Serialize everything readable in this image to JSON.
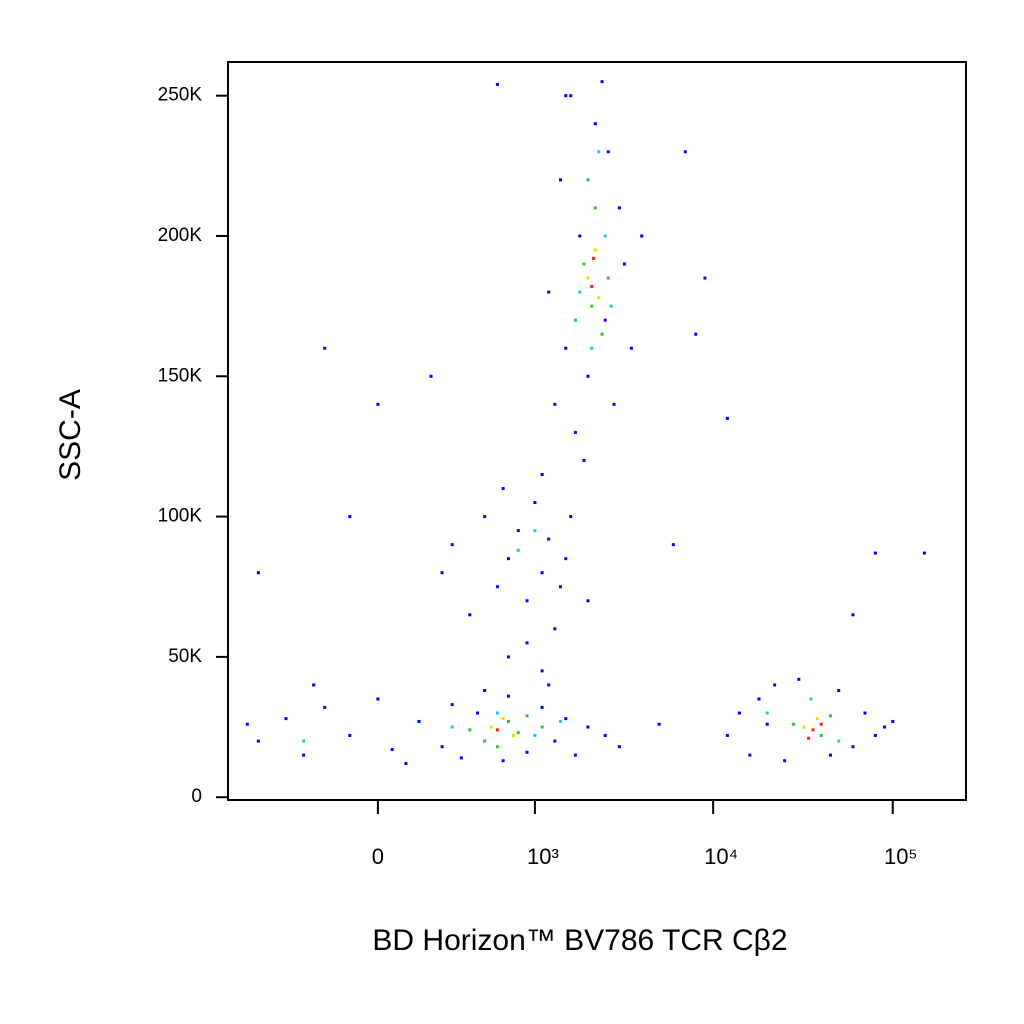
{
  "chart_data": {
    "type": "scatter",
    "x_label": "BD Horizon™ BV786 TCR Cβ2",
    "y_label": "SSC-A",
    "xscale": "asinh",
    "xlim": [
      -909,
      255700
    ],
    "ylim": [
      -1000,
      262000
    ],
    "xticks": [
      0,
      {
        "value": 1000,
        "label": "10³"
      },
      {
        "value": 10000,
        "label": "10⁴"
      },
      {
        "value": 100000,
        "label": "10⁵"
      }
    ],
    "yticks": [
      0,
      {
        "value": 50000,
        "label": "50K"
      },
      {
        "value": 100000,
        "label": "100K"
      },
      {
        "value": 150000,
        "label": "150K"
      },
      {
        "value": 200000,
        "label": "200K"
      },
      {
        "value": 250000,
        "label": "250K"
      }
    ],
    "series": [
      {
        "color": "#0000ff",
        "x": [
          -600,
          -400,
          -300,
          -200,
          -100,
          0,
          100,
          150,
          250,
          300,
          350,
          450,
          500,
          650,
          700,
          900,
          1100,
          1300,
          1500,
          1700,
          2000,
          -700,
          -250,
          50,
          1200,
          2500,
          3000,
          5000,
          12000,
          14000,
          16000,
          18000,
          20000,
          22000,
          25000,
          50000,
          60000,
          70000,
          80000,
          90000,
          45000,
          30000,
          100000,
          300,
          500,
          600,
          700,
          800,
          900,
          1000,
          1100,
          1200,
          1400,
          1600,
          400,
          650,
          1300,
          250,
          900,
          1100,
          700,
          1500,
          2000,
          1300,
          1500,
          1700,
          1800,
          2000,
          2200,
          2500,
          2800,
          3000,
          3200,
          1400,
          1600,
          2400,
          3500,
          1200,
          2600,
          1900,
          1100,
          4000,
          1500,
          -200,
          -100,
          0,
          200,
          8000,
          9000,
          12000,
          60000,
          80000,
          150000,
          6000,
          600,
          7000,
          -600
        ],
        "y": [
          20000,
          28000,
          15000,
          32000,
          22000,
          35000,
          12000,
          27000,
          18000,
          33000,
          14000,
          30000,
          38000,
          13000,
          36000,
          16000,
          32000,
          20000,
          28000,
          15000,
          25000,
          26000,
          40000,
          17000,
          40000,
          22000,
          18000,
          26000,
          22000,
          30000,
          15000,
          35000,
          26000,
          40000,
          13000,
          38000,
          18000,
          30000,
          22000,
          25000,
          15000,
          42000,
          27000,
          90000,
          100000,
          75000,
          85000,
          95000,
          70000,
          105000,
          80000,
          92000,
          75000,
          100000,
          65000,
          110000,
          60000,
          80000,
          55000,
          45000,
          50000,
          85000,
          70000,
          140000,
          160000,
          130000,
          200000,
          150000,
          240000,
          170000,
          140000,
          210000,
          190000,
          220000,
          250000,
          255000,
          160000,
          180000,
          230000,
          120000,
          115000,
          200000,
          250000,
          160000,
          100000,
          140000,
          150000,
          165000,
          185000,
          135000,
          65000,
          87000,
          87000,
          90000,
          254000,
          230000,
          80000
        ]
      },
      {
        "color": "#18c8f0",
        "x": [
          300,
          -300,
          600,
          1000,
          1400,
          20000,
          50000,
          35000,
          1800,
          2500,
          2100,
          2300,
          800,
          1000,
          2700
        ],
        "y": [
          25000,
          20000,
          30000,
          22000,
          27000,
          30000,
          20000,
          35000,
          180000,
          200000,
          160000,
          230000,
          88000,
          95000,
          175000
        ]
      },
      {
        "color": "#30c030",
        "x": [
          400,
          500,
          700,
          800,
          900,
          1100,
          600,
          28000,
          40000,
          45000,
          1900,
          2100,
          2200,
          2400,
          2000,
          2600,
          1700
        ],
        "y": [
          24000,
          20000,
          27000,
          23000,
          29000,
          25000,
          18000,
          26000,
          22000,
          29000,
          190000,
          175000,
          210000,
          165000,
          220000,
          185000,
          170000
        ]
      },
      {
        "color": "#e8e000",
        "x": [
          550,
          750,
          650,
          32000,
          38000,
          2000,
          2200,
          2300
        ],
        "y": [
          25000,
          22000,
          28000,
          25000,
          28000,
          185000,
          195000,
          178000
        ]
      },
      {
        "color": "#ff2000",
        "x": [
          600,
          36000,
          34000,
          40000,
          2100,
          2150
        ],
        "y": [
          24000,
          24000,
          21000,
          26000,
          182000,
          192000
        ]
      }
    ]
  }
}
